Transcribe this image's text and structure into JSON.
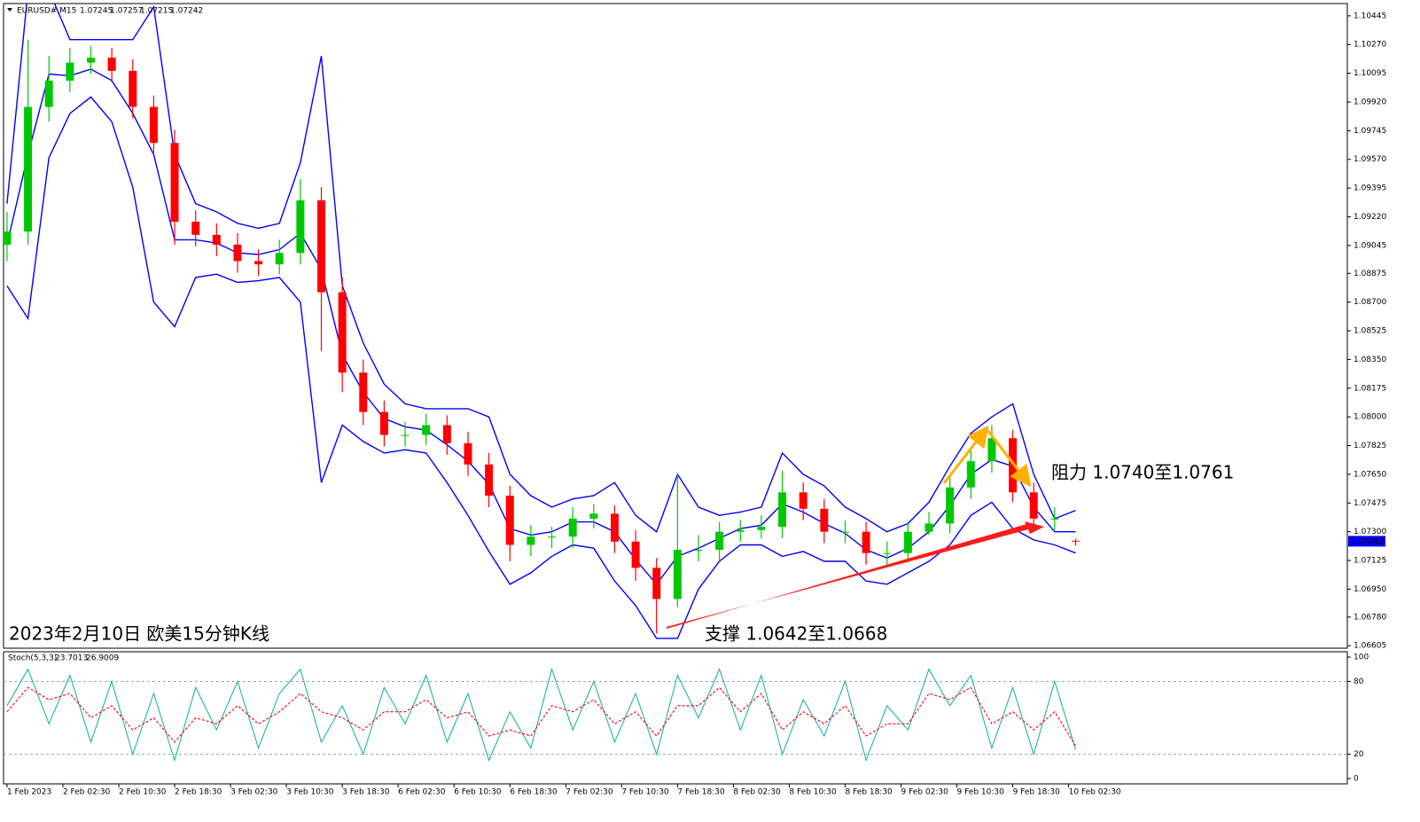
{
  "chart_data": [
    {
      "type": "candlestick",
      "title": "EURUSD#,M15",
      "x": [
        0,
        3,
        6,
        9,
        12,
        15,
        18,
        21,
        24,
        27,
        30,
        33,
        36,
        39,
        42,
        45,
        48,
        51,
        54,
        57,
        60,
        63,
        66,
        69,
        72,
        75,
        78,
        81,
        84,
        87,
        90,
        93,
        96,
        99,
        102,
        105,
        108,
        111,
        114,
        117,
        120,
        123,
        126,
        129,
        132,
        135,
        138,
        141,
        144,
        147,
        150,
        153
      ],
      "open": [
        1.0905,
        1.0913,
        1.0989,
        1.1005,
        1.1016,
        1.1019,
        1.1011,
        1.0989,
        1.0967,
        1.0919,
        1.0911,
        1.0905,
        1.0895,
        1.0893,
        1.09,
        1.0932,
        1.0876,
        1.0827,
        1.0803,
        1.0789,
        1.0789,
        1.0795,
        1.0784,
        1.0771,
        1.0752,
        1.0722,
        1.0727,
        1.0727,
        1.0738,
        1.0741,
        1.0724,
        1.0708,
        1.0689,
        1.0719,
        1.0719,
        1.073,
        1.0731,
        1.0733,
        1.0754,
        1.0744,
        1.073,
        1.073,
        1.0717,
        1.0717,
        1.073,
        1.0735,
        1.0757,
        1.0773,
        1.0787,
        1.0754,
        1.0738,
        1.07245
      ],
      "high": [
        1.0925,
        1.103,
        1.102,
        1.1025,
        1.1026,
        1.1025,
        1.1018,
        1.0996,
        1.0975,
        1.0926,
        1.0918,
        1.0912,
        1.0902,
        1.0908,
        1.0945,
        1.094,
        1.0885,
        1.0835,
        1.081,
        1.0797,
        1.0802,
        1.0801,
        1.0791,
        1.0778,
        1.0758,
        1.0734,
        1.0733,
        1.0745,
        1.0747,
        1.0746,
        1.0731,
        1.0714,
        1.0765,
        1.0728,
        1.0736,
        1.0737,
        1.074,
        1.0767,
        1.076,
        1.075,
        1.0737,
        1.0736,
        1.0724,
        1.0736,
        1.0742,
        1.0764,
        1.078,
        1.0795,
        1.0792,
        1.076,
        1.0745,
        1.07257
      ],
      "low": [
        1.0895,
        1.0905,
        1.098,
        1.0998,
        1.1009,
        1.1004,
        1.0982,
        1.096,
        1.0905,
        1.0904,
        1.0898,
        1.0888,
        1.0886,
        1.0887,
        1.0893,
        1.084,
        1.0815,
        1.0795,
        1.0782,
        1.0782,
        1.0783,
        1.0777,
        1.0764,
        1.0745,
        1.0712,
        1.0715,
        1.072,
        1.072,
        1.0732,
        1.0717,
        1.07,
        1.0668,
        1.0684,
        1.0712,
        1.0712,
        1.0724,
        1.0726,
        1.0726,
        1.0737,
        1.0723,
        1.0723,
        1.071,
        1.071,
        1.0711,
        1.0728,
        1.0729,
        1.075,
        1.0766,
        1.0748,
        1.0731,
        1.0731,
        1.07215
      ],
      "close": [
        1.0913,
        1.0989,
        1.1005,
        1.1016,
        1.1019,
        1.1011,
        1.0989,
        1.0967,
        1.0919,
        1.0911,
        1.0905,
        1.0895,
        1.0893,
        1.09,
        1.0932,
        1.0876,
        1.0827,
        1.0803,
        1.0789,
        1.0789,
        1.0795,
        1.0784,
        1.0771,
        1.0752,
        1.0722,
        1.0727,
        1.0727,
        1.0738,
        1.0741,
        1.0724,
        1.0708,
        1.0689,
        1.0719,
        1.0719,
        1.073,
        1.0731,
        1.0733,
        1.0754,
        1.0744,
        1.073,
        1.073,
        1.0717,
        1.0717,
        1.073,
        1.0735,
        1.0757,
        1.0773,
        1.0787,
        1.0754,
        1.0738,
        1.0738,
        1.07242
      ],
      "up_color": "#00c800",
      "down_color": "#ff0000",
      "bands": {
        "color": "#0000ff",
        "upper": [
          1.093,
          1.106,
          1.106,
          1.103,
          1.103,
          1.103,
          1.103,
          1.105,
          1.096,
          1.093,
          1.0925,
          1.0918,
          1.0915,
          1.0918,
          1.0955,
          1.102,
          1.088,
          1.0845,
          1.082,
          1.0808,
          1.0805,
          1.0805,
          1.0805,
          1.08,
          1.0765,
          1.0752,
          1.0745,
          1.075,
          1.0752,
          1.076,
          1.074,
          1.073,
          1.0765,
          1.0745,
          1.074,
          1.0742,
          1.0745,
          1.0778,
          1.0765,
          1.0758,
          1.0745,
          1.0738,
          1.073,
          1.0735,
          1.0748,
          1.077,
          1.079,
          1.08,
          1.0808,
          1.0765,
          1.0738,
          1.0743
        ],
        "middle": [
          1.0905,
          1.096,
          1.1009,
          1.1008,
          1.1012,
          1.1005,
          1.0985,
          1.096,
          1.0908,
          1.0908,
          1.0906,
          1.09,
          1.0899,
          1.0902,
          1.0912,
          1.089,
          1.0838,
          1.0815,
          1.0799,
          1.0794,
          1.0792,
          1.0783,
          1.0773,
          1.0759,
          1.0732,
          1.0728,
          1.073,
          1.0736,
          1.0736,
          1.073,
          1.0713,
          1.0698,
          1.0715,
          1.072,
          1.0726,
          1.0732,
          1.0734,
          1.0747,
          1.0742,
          1.0735,
          1.0729,
          1.0719,
          1.0714,
          1.072,
          1.073,
          1.0746,
          1.0765,
          1.0774,
          1.077,
          1.0745,
          1.073,
          1.073
        ],
        "lower": [
          1.088,
          1.086,
          1.0958,
          1.0985,
          1.0995,
          1.098,
          1.094,
          1.087,
          1.0855,
          1.0885,
          1.0887,
          1.0882,
          1.0883,
          1.0885,
          1.087,
          1.076,
          1.0795,
          1.0785,
          1.0778,
          1.078,
          1.0778,
          1.076,
          1.074,
          1.0718,
          1.0698,
          1.0705,
          1.0715,
          1.0722,
          1.072,
          1.07,
          1.0685,
          1.0665,
          1.0665,
          1.0695,
          1.0712,
          1.0722,
          1.0722,
          1.0715,
          1.0718,
          1.0712,
          1.0712,
          1.07,
          1.0698,
          1.0705,
          1.0712,
          1.0722,
          1.074,
          1.0748,
          1.0732,
          1.0725,
          1.0722,
          1.0717
        ]
      },
      "xlim": [
        -0.5,
        191.9
      ],
      "ylim": [
        1.0659,
        1.1052
      ],
      "yticks": [
        1.10445,
        {
          "value": 1.1027,
          "label": "1.10270"
        },
        1.10095,
        {
          "value": 1.0992,
          "label": "1.09920"
        },
        1.09745,
        {
          "value": 1.0957,
          "label": "1.09570"
        },
        1.09395,
        {
          "value": 1.0922,
          "label": "1.09220"
        },
        1.09045,
        1.08875,
        {
          "value": 1.087,
          "label": "1.08700"
        },
        1.08525,
        {
          "value": 1.0835,
          "label": "1.08350"
        },
        1.08175,
        {
          "value": 1.08,
          "label": "1.08000"
        },
        1.07825,
        {
          "value": 1.0765,
          "label": "1.07650"
        },
        1.07475,
        {
          "value": 1.073,
          "label": "1.07300"
        },
        1.07125,
        {
          "value": 1.0695,
          "label": "1.06950"
        },
        {
          "value": 1.0678,
          "label": "1.06780"
        },
        1.06605
      ],
      "annotations": [
        "2023年2月10日 欧美15分钟K线",
        "支撑 1.0642至1.0668",
        "阻力 1.0740至1.0761"
      ]
    },
    {
      "type": "line",
      "title": "Stoch(5,3,3)",
      "x": [
        0,
        3,
        6,
        9,
        12,
        15,
        18,
        21,
        24,
        27,
        30,
        33,
        36,
        39,
        42,
        45,
        48,
        51,
        54,
        57,
        60,
        63,
        66,
        69,
        72,
        75,
        78,
        81,
        84,
        87,
        90,
        93,
        96,
        99,
        102,
        105,
        108,
        111,
        114,
        117,
        120,
        123,
        126,
        129,
        132,
        135,
        138,
        141,
        144,
        147,
        150,
        153
      ],
      "series": [
        {
          "color": "#20b2aa",
          "dash": false,
          "values": [
            60,
            90,
            45,
            85,
            30,
            80,
            20,
            70,
            15,
            75,
            40,
            80,
            25,
            70,
            90,
            30,
            60,
            20,
            75,
            45,
            85,
            30,
            70,
            15,
            55,
            25,
            90,
            40,
            80,
            30,
            70,
            20,
            85,
            50,
            90,
            40,
            85,
            20,
            65,
            35,
            80,
            15,
            60,
            40,
            90,
            60,
            85,
            25,
            75,
            20,
            80,
            23.7013
          ]
        },
        {
          "color": "#ff0000",
          "dash": true,
          "values": [
            55,
            75,
            65,
            70,
            50,
            60,
            40,
            50,
            30,
            50,
            45,
            60,
            45,
            55,
            70,
            55,
            50,
            40,
            55,
            55,
            65,
            50,
            55,
            35,
            40,
            35,
            60,
            55,
            65,
            45,
            55,
            35,
            60,
            60,
            75,
            55,
            70,
            40,
            55,
            45,
            60,
            35,
            45,
            45,
            70,
            65,
            75,
            45,
            55,
            40,
            55,
            26.9009
          ]
        }
      ],
      "xlim": [
        -0.5,
        191.9
      ],
      "ylim": [
        -4.4,
        104.4
      ],
      "yticks": [
        0,
        20,
        80,
        100
      ],
      "levels": [
        20,
        80
      ],
      "xticks": [
        {
          "value": 0,
          "label": "1 Feb 2023"
        },
        {
          "value": 8,
          "label": "2 Feb 02:30"
        },
        {
          "value": 16,
          "label": "2 Feb 10:30"
        },
        {
          "value": 24,
          "label": "2 Feb 18:30"
        },
        {
          "value": 32,
          "label": "3 Feb 02:30"
        },
        {
          "value": 40,
          "label": "3 Feb 10:30"
        },
        {
          "value": 48,
          "label": "3 Feb 18:30"
        },
        {
          "value": 56,
          "label": "6 Feb 02:30"
        },
        {
          "value": 64,
          "label": "6 Feb 10:30"
        },
        {
          "value": 72,
          "label": "6 Feb 18:30"
        },
        {
          "value": 80,
          "label": "7 Feb 02:30"
        },
        {
          "value": 88,
          "label": "7 Feb 10:30"
        },
        {
          "value": 96,
          "label": "7 Feb 18:30"
        },
        {
          "value": 104,
          "label": "8 Feb 02:30"
        },
        {
          "value": 112,
          "label": "8 Feb 10:30"
        },
        {
          "value": 120,
          "label": "8 Feb 18:30"
        },
        {
          "value": 128,
          "label": "9 Feb 02:30"
        },
        {
          "value": 136,
          "label": "9 Feb 10:30"
        },
        {
          "value": 144,
          "label": "9 Feb 18:30"
        },
        {
          "value": 152,
          "label": "10 Feb 02:30"
        }
      ]
    }
  ]
}
